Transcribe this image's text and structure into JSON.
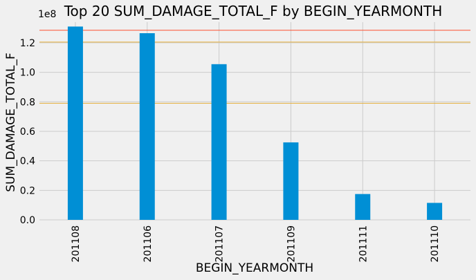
{
  "chart_data": {
    "type": "bar",
    "title": "Top 20 SUM_DAMAGE_TOTAL_F by BEGIN_YEARMONTH",
    "xlabel": "BEGIN_YEARMONTH",
    "ylabel": "SUM_DAMAGE_TOTAL_F",
    "y_scale_label": "1e8",
    "categories": [
      "201108",
      "201106",
      "201107",
      "201109",
      "201111",
      "201110"
    ],
    "values": [
      131000000,
      126500000,
      105500000,
      52500000,
      17500000,
      11500000
    ],
    "ylim": [
      0,
      134000000
    ],
    "yticks": [
      0,
      20000000,
      40000000,
      60000000,
      80000000,
      100000000,
      120000000
    ],
    "ytick_labels": [
      "0.0",
      "0.2",
      "0.4",
      "0.6",
      "0.8",
      "1.0",
      "1.2"
    ],
    "grid": true,
    "bar_color": "#008fd5",
    "reference_lines": [
      {
        "value": 128500000,
        "color": "#fc4f30"
      },
      {
        "value": 120500000,
        "color": "#e5ae38"
      },
      {
        "value": 79000000,
        "color": "#e5ae38"
      }
    ]
  }
}
